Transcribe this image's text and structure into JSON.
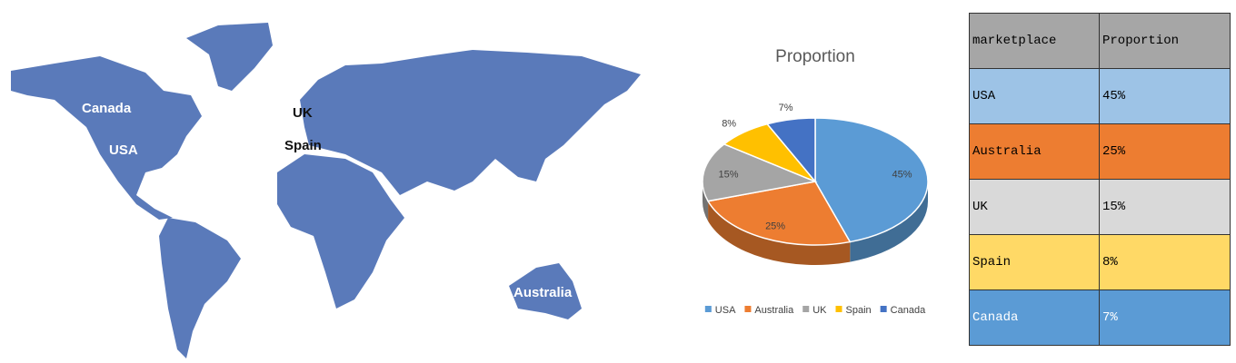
{
  "map": {
    "labels": [
      "Canada",
      "USA",
      "UK",
      "Spain",
      "Australia"
    ]
  },
  "chart_data": {
    "type": "pie",
    "title": "Proportion",
    "categories": [
      "USA",
      "Australia",
      "UK",
      "Spain",
      "Canada"
    ],
    "values": [
      45,
      25,
      15,
      8,
      7
    ],
    "value_labels": [
      "45%",
      "25%",
      "15%",
      "8%",
      "7%"
    ],
    "colors": [
      "#5b9bd5",
      "#ed7d31",
      "#a5a5a5",
      "#ffc000",
      "#4472c4"
    ],
    "legend": "bottom"
  },
  "table": {
    "header": [
      "marketplace",
      "Proportion"
    ],
    "rows": [
      [
        "USA",
        "45%"
      ],
      [
        "Australia",
        "25%"
      ],
      [
        "UK",
        "15%"
      ],
      [
        "Spain",
        "8%"
      ],
      [
        "Canada",
        "7%"
      ]
    ]
  }
}
